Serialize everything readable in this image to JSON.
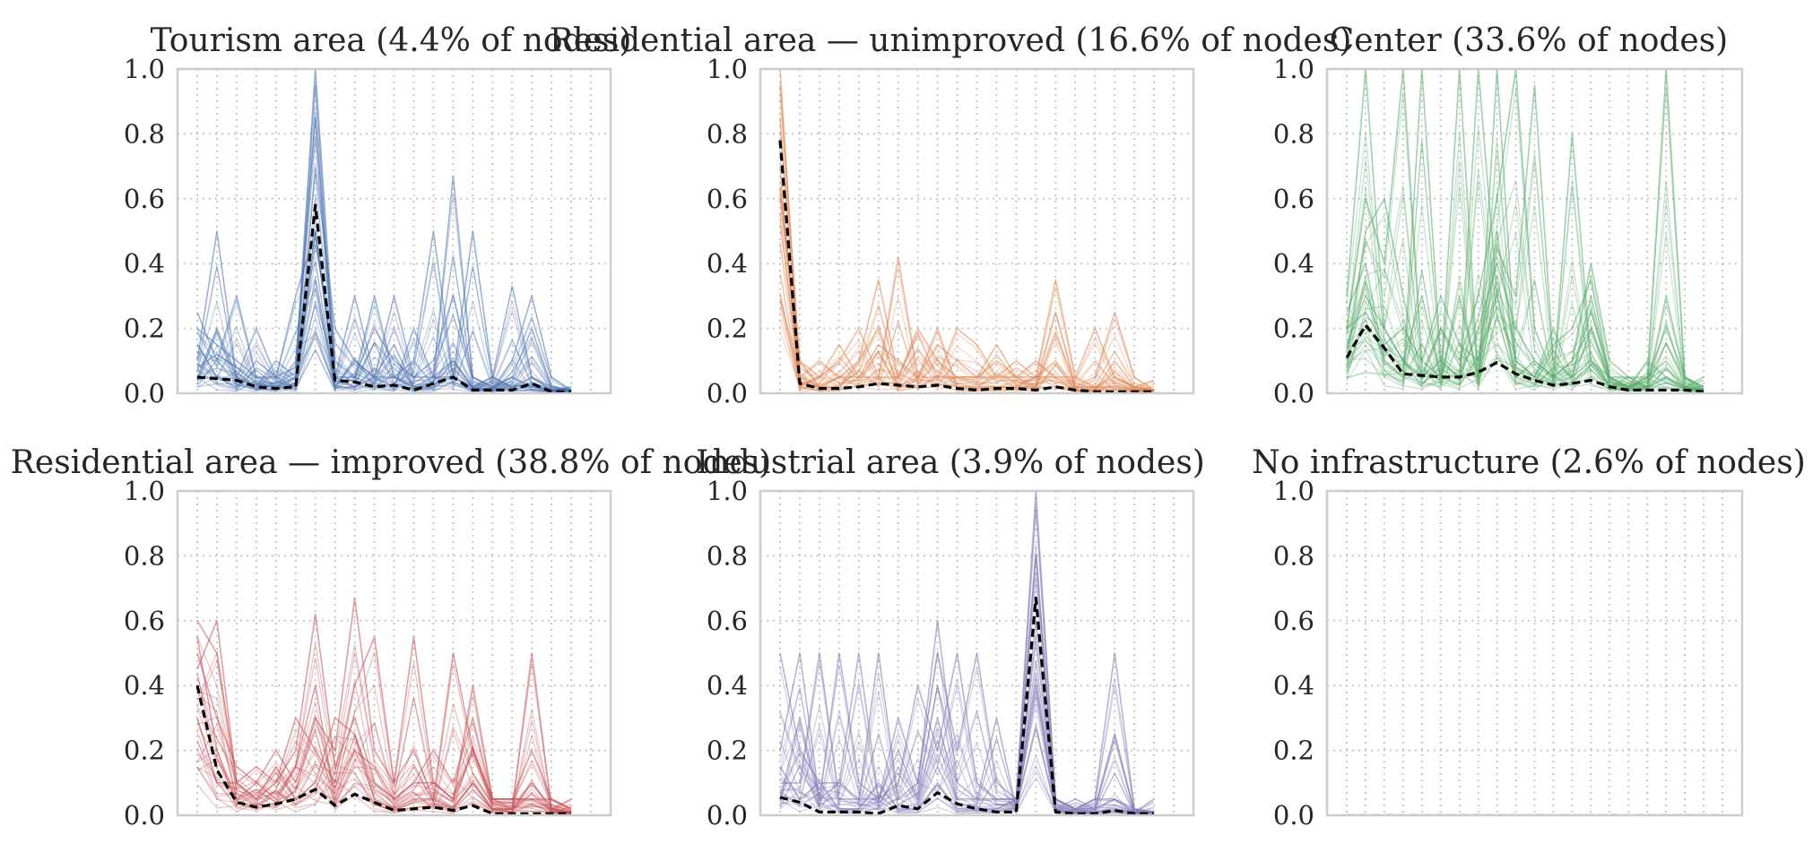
{
  "chart_data": [
    {
      "type": "line",
      "title": "Tourism area (4.4% of nodes)",
      "color": "#4c72b0",
      "ylim": [
        0,
        1
      ],
      "yticks": [
        "0.0",
        "0.2",
        "0.4",
        "0.6",
        "0.8",
        "1.0"
      ],
      "n_points": 21,
      "grid": true,
      "series": [
        {
          "role": "mean",
          "style": "dashed",
          "color": "#000000",
          "values": [
            0.05,
            0.045,
            0.04,
            0.02,
            0.015,
            0.02,
            0.58,
            0.04,
            0.035,
            0.02,
            0.025,
            0.01,
            0.03,
            0.05,
            0.01,
            0.01,
            0.01,
            0.03,
            0.005,
            0.005,
            null
          ]
        },
        {
          "role": "individual",
          "values": [
            0.2,
            0.15,
            0.1,
            0.05,
            0.05,
            0.08,
            1.0,
            0.1,
            0.05,
            0.2,
            0.1,
            0.05,
            0.1,
            0.3,
            0.05,
            0.02,
            0.05,
            0.2,
            0.02,
            0.01,
            null
          ]
        },
        {
          "role": "individual",
          "values": [
            0.1,
            0.5,
            0.05,
            0.02,
            0.1,
            0.05,
            0.95,
            0.05,
            0.3,
            0.05,
            0.05,
            0.02,
            0.05,
            0.1,
            0.02,
            0.05,
            0.02,
            0.05,
            0.01,
            0.01,
            null
          ]
        },
        {
          "role": "individual",
          "values": [
            0.25,
            0.1,
            0.3,
            0.05,
            0.02,
            0.1,
            0.85,
            0.05,
            0.05,
            0.3,
            0.05,
            0.1,
            0.5,
            0.05,
            0.02,
            0.05,
            0.33,
            0.05,
            0.02,
            0.01,
            null
          ]
        },
        {
          "role": "individual",
          "values": [
            0.05,
            0.2,
            0.05,
            0.2,
            0.05,
            0.02,
            0.7,
            0.2,
            0.1,
            0.05,
            0.3,
            0.05,
            0.05,
            0.67,
            0.05,
            0.02,
            0.05,
            0.02,
            0.01,
            0.01,
            null
          ]
        },
        {
          "role": "individual",
          "values": [
            0.15,
            0.05,
            0.02,
            0.1,
            0.05,
            0.3,
            0.5,
            0.05,
            0.02,
            0.05,
            0.02,
            0.2,
            0.05,
            0.05,
            0.5,
            0.05,
            0.02,
            0.03,
            0.01,
            0.02,
            null
          ]
        },
        {
          "role": "individual",
          "values": [
            0.08,
            0.12,
            0.08,
            0.03,
            0.02,
            0.05,
            0.35,
            0.02,
            0.1,
            0.05,
            0.15,
            0.02,
            0.02,
            0.1,
            0.02,
            0.01,
            0.1,
            0.3,
            0.05,
            0.01,
            null
          ]
        }
      ]
    },
    {
      "type": "line",
      "title": "Residential area — unimproved (16.6% of nodes)",
      "color": "#dd8452",
      "ylim": [
        0,
        1
      ],
      "yticks": [
        "0.0",
        "0.2",
        "0.4",
        "0.6",
        "0.8",
        "1.0"
      ],
      "n_points": 21,
      "grid": true,
      "series": [
        {
          "role": "mean",
          "style": "dashed",
          "color": "#000000",
          "values": [
            0.78,
            0.03,
            0.015,
            0.015,
            0.02,
            0.03,
            0.025,
            0.02,
            0.025,
            0.015,
            0.01,
            0.015,
            0.015,
            0.01,
            0.02,
            0.01,
            0.005,
            0.005,
            0.005,
            0.005,
            null
          ]
        },
        {
          "role": "individual",
          "values": [
            1.0,
            0.05,
            0.02,
            0.05,
            0.1,
            0.35,
            0.05,
            0.2,
            0.1,
            0.05,
            0.05,
            0.1,
            0.05,
            0.05,
            0.35,
            0.05,
            0.02,
            0.05,
            0.02,
            0.01,
            null
          ]
        },
        {
          "role": "individual",
          "values": [
            0.95,
            0.1,
            0.05,
            0.1,
            0.2,
            0.05,
            0.42,
            0.05,
            0.15,
            0.1,
            0.05,
            0.05,
            0.1,
            0.05,
            0.1,
            0.02,
            0.05,
            0.25,
            0.05,
            0.01,
            null
          ]
        },
        {
          "role": "individual",
          "values": [
            0.85,
            0.05,
            0.1,
            0.05,
            0.05,
            0.15,
            0.1,
            0.05,
            0.05,
            0.2,
            0.15,
            0.05,
            0.05,
            0.1,
            0.05,
            0.05,
            0.2,
            0.05,
            0.02,
            0.01,
            null
          ]
        },
        {
          "role": "individual",
          "values": [
            0.7,
            0.02,
            0.05,
            0.15,
            0.05,
            0.05,
            0.05,
            0.18,
            0.05,
            0.05,
            0.05,
            0.15,
            0.05,
            0.02,
            0.25,
            0.02,
            0.02,
            0.02,
            0.01,
            0.01,
            null
          ]
        },
        {
          "role": "individual",
          "values": [
            0.6,
            0.1,
            0.02,
            0.02,
            0.1,
            0.2,
            0.02,
            0.05,
            0.2,
            0.02,
            0.02,
            0.02,
            0.02,
            0.05,
            0.05,
            0.01,
            0.01,
            0.1,
            0.02,
            0.04,
            null
          ]
        }
      ]
    },
    {
      "type": "line",
      "title": "Center (33.6% of nodes)",
      "color": "#55a868",
      "ylim": [
        0,
        1
      ],
      "yticks": [
        "0.0",
        "0.2",
        "0.4",
        "0.6",
        "0.8",
        "1.0"
      ],
      "n_points": 21,
      "grid": true,
      "series": [
        {
          "role": "mean",
          "style": "dashed",
          "color": "#000000",
          "values": [
            0.11,
            0.21,
            0.14,
            0.06,
            0.055,
            0.05,
            0.05,
            0.065,
            0.095,
            0.06,
            0.04,
            0.025,
            0.03,
            0.04,
            0.02,
            0.01,
            0.01,
            0.01,
            0.01,
            0.005,
            null
          ]
        },
        {
          "role": "individual",
          "values": [
            0.3,
            1.0,
            0.2,
            0.1,
            0.05,
            0.1,
            0.05,
            0.2,
            0.4,
            0.2,
            0.1,
            0.05,
            0.1,
            0.2,
            0.05,
            0.02,
            0.05,
            0.1,
            0.02,
            0.01,
            null
          ]
        },
        {
          "role": "individual",
          "values": [
            0.2,
            0.6,
            0.4,
            1.0,
            0.1,
            0.05,
            0.3,
            0.05,
            1.0,
            0.1,
            0.05,
            0.2,
            0.05,
            0.1,
            0.02,
            0.05,
            0.02,
            0.3,
            0.05,
            0.02,
            null
          ]
        },
        {
          "role": "individual",
          "values": [
            0.25,
            0.4,
            0.1,
            0.05,
            1.0,
            0.1,
            0.05,
            1.0,
            0.3,
            0.05,
            0.1,
            0.05,
            0.8,
            0.1,
            0.05,
            0.02,
            0.05,
            1.0,
            0.05,
            0.01,
            null
          ]
        },
        {
          "role": "individual",
          "values": [
            0.1,
            0.5,
            0.6,
            0.3,
            0.05,
            0.2,
            0.1,
            0.3,
            0.6,
            1.0,
            0.2,
            0.05,
            0.1,
            0.4,
            0.1,
            0.05,
            0.02,
            0.05,
            0.02,
            0.05,
            null
          ]
        },
        {
          "role": "individual",
          "values": [
            0.15,
            0.3,
            0.2,
            0.1,
            0.3,
            0.05,
            1.0,
            0.05,
            0.45,
            0.3,
            0.95,
            0.1,
            0.05,
            0.3,
            0.05,
            0.02,
            0.1,
            0.05,
            0.02,
            0.01,
            null
          ]
        },
        {
          "role": "individual",
          "values": [
            0.2,
            0.25,
            0.15,
            0.2,
            0.1,
            0.3,
            0.15,
            0.1,
            0.5,
            0.1,
            0.05,
            0.15,
            0.2,
            0.35,
            0.05,
            0.05,
            0.05,
            0.2,
            0.05,
            0.02,
            null
          ]
        }
      ]
    },
    {
      "type": "line",
      "title": "Residential area — improved (38.8% of nodes)",
      "color": "#c44e52",
      "ylim": [
        0,
        1
      ],
      "yticks": [
        "0.0",
        "0.2",
        "0.4",
        "0.6",
        "0.8",
        "1.0"
      ],
      "n_points": 21,
      "grid": true,
      "series": [
        {
          "role": "mean",
          "style": "dashed",
          "color": "#000000",
          "values": [
            0.4,
            0.14,
            0.04,
            0.025,
            0.035,
            0.05,
            0.08,
            0.03,
            0.065,
            0.04,
            0.015,
            0.02,
            0.025,
            0.015,
            0.03,
            0.005,
            0.005,
            0.005,
            0.005,
            0.005,
            null
          ]
        },
        {
          "role": "individual",
          "values": [
            0.6,
            0.5,
            0.1,
            0.15,
            0.1,
            0.2,
            0.62,
            0.15,
            0.3,
            0.1,
            0.05,
            0.1,
            0.1,
            0.05,
            0.4,
            0.05,
            0.05,
            0.2,
            0.05,
            0.02,
            null
          ]
        },
        {
          "role": "individual",
          "values": [
            0.5,
            0.3,
            0.15,
            0.1,
            0.2,
            0.1,
            0.3,
            0.2,
            0.67,
            0.2,
            0.1,
            0.55,
            0.1,
            0.05,
            0.2,
            0.05,
            0.05,
            0.05,
            0.05,
            0.02,
            null
          ]
        },
        {
          "role": "individual",
          "values": [
            0.45,
            0.6,
            0.1,
            0.05,
            0.1,
            0.3,
            0.2,
            0.1,
            0.4,
            0.55,
            0.1,
            0.2,
            0.05,
            0.5,
            0.2,
            0.05,
            0.02,
            0.5,
            0.02,
            0.01,
            null
          ]
        },
        {
          "role": "individual",
          "values": [
            0.55,
            0.2,
            0.05,
            0.1,
            0.05,
            0.15,
            0.4,
            0.05,
            0.2,
            0.15,
            0.05,
            0.1,
            0.2,
            0.1,
            0.3,
            0.05,
            0.05,
            0.05,
            0.02,
            0.01,
            null
          ]
        },
        {
          "role": "individual",
          "values": [
            0.3,
            0.1,
            0.1,
            0.05,
            0.15,
            0.05,
            0.1,
            0.3,
            0.25,
            0.05,
            0.02,
            0.05,
            0.05,
            0.02,
            0.1,
            0.02,
            0.02,
            0.1,
            0.02,
            0.05,
            null
          ]
        }
      ]
    },
    {
      "type": "line",
      "title": "Industrial area (3.9% of nodes)",
      "color": "#8172b3",
      "ylim": [
        0,
        1
      ],
      "yticks": [
        "0.0",
        "0.2",
        "0.4",
        "0.6",
        "0.8",
        "1.0"
      ],
      "n_points": 21,
      "grid": true,
      "series": [
        {
          "role": "mean",
          "style": "dashed",
          "color": "#000000",
          "values": [
            0.055,
            0.04,
            0.01,
            0.01,
            0.01,
            0.005,
            0.03,
            0.02,
            0.07,
            0.035,
            0.02,
            0.01,
            0.01,
            0.67,
            0.01,
            0.005,
            0.005,
            0.015,
            0.005,
            0.005,
            null
          ]
        },
        {
          "role": "individual",
          "values": [
            0.5,
            0.2,
            0.1,
            0.1,
            0.05,
            0.05,
            0.3,
            0.1,
            0.6,
            0.1,
            0.05,
            0.05,
            0.05,
            1.0,
            0.05,
            0.02,
            0.05,
            0.5,
            0.02,
            0.01,
            null
          ]
        },
        {
          "role": "individual",
          "values": [
            0.2,
            0.5,
            0.05,
            0.5,
            0.1,
            0.05,
            0.1,
            0.4,
            0.2,
            0.5,
            0.1,
            0.05,
            0.05,
            0.95,
            0.05,
            0.02,
            0.02,
            0.25,
            0.01,
            0.01,
            null
          ]
        },
        {
          "role": "individual",
          "values": [
            0.1,
            0.1,
            0.5,
            0.05,
            0.05,
            0.5,
            0.05,
            0.1,
            0.5,
            0.2,
            0.5,
            0.1,
            0.05,
            0.8,
            0.02,
            0.05,
            0.02,
            0.05,
            0.02,
            0.01,
            null
          ]
        },
        {
          "role": "individual",
          "values": [
            0.05,
            0.3,
            0.05,
            0.1,
            0.5,
            0.05,
            0.2,
            0.05,
            0.3,
            0.05,
            0.05,
            0.3,
            0.02,
            0.6,
            0.05,
            0.02,
            0.05,
            0.05,
            0.01,
            0.05,
            null
          ]
        },
        {
          "role": "individual",
          "values": [
            0.15,
            0.05,
            0.1,
            0.02,
            0.02,
            0.1,
            0.02,
            0.02,
            0.1,
            0.02,
            0.02,
            0.02,
            0.05,
            0.4,
            0.02,
            0.01,
            0.01,
            0.02,
            0.01,
            0.01,
            null
          ]
        }
      ]
    },
    {
      "type": "line",
      "title": "No infrastructure (2.6% of nodes)",
      "color": "#937860",
      "ylim": [
        0,
        1
      ],
      "yticks": [
        "0.0",
        "0.2",
        "0.4",
        "0.6",
        "0.8",
        "1.0"
      ],
      "n_points": 21,
      "grid": true,
      "series": [
        {
          "role": "mean",
          "style": "dashed",
          "color": "#cccccc",
          "values": [
            0,
            0,
            0,
            0,
            0,
            0,
            0,
            0,
            0,
            0,
            0,
            0,
            0,
            0,
            0,
            0,
            0,
            0,
            0,
            0,
            0
          ]
        }
      ]
    }
  ]
}
